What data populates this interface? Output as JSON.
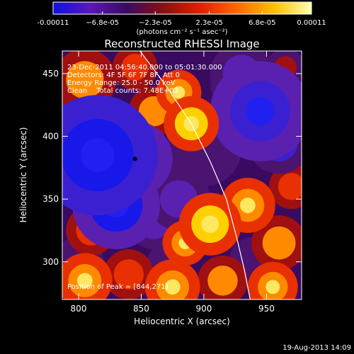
{
  "chart_data": {
    "type": "heatmap",
    "title": "Reconstructed RHESSI Image",
    "xlabel": "Heliocentric X (arcsec)",
    "ylabel": "Heliocentric Y (arcsec)",
    "xlim": [
      787,
      978
    ],
    "ylim": [
      270,
      468
    ],
    "x_ticks": [
      800,
      850,
      900,
      950
    ],
    "y_ticks": [
      300,
      350,
      400,
      450
    ],
    "colorbar": {
      "min": -0.00011,
      "max": 0.00011,
      "tick_values": [
        -0.00011,
        -6.8e-05,
        -2.3e-05,
        2.3e-05,
        6.8e-05,
        0.00011
      ],
      "tick_labels": [
        "-0.00011",
        "−6.8e-05",
        "−2.3e-05",
        "2.3e-05",
        "6.8e-05",
        "0.00011"
      ],
      "unit_label": "(photons cm⁻² s⁻¹ asec⁻²)",
      "colors": [
        "#1010e0",
        "#5a18b8",
        "#3a0a60",
        "#8a1010",
        "#e02000",
        "#ff6a00",
        "#ffc000",
        "#ffffb0"
      ]
    },
    "annotations": [
      "23-Dec-2011 04:56:40.000 to 05:01:30.000",
      "Detectors: 4F 5F 6F 7F 8F, Att 0",
      "Energy Range: 25.0 - 50.0 keV",
      "Clean    Total counts: 7.48E+03"
    ],
    "peak_label": "Position of Peak = [844,271]",
    "marker": {
      "x": 845,
      "y": 382
    },
    "limb_curve": [
      [
        849,
        468
      ],
      [
        870,
        440
      ],
      [
        890,
        410
      ],
      [
        905,
        380
      ],
      [
        918,
        350
      ],
      [
        926,
        320
      ],
      [
        932,
        295
      ],
      [
        937,
        270
      ]
    ],
    "blobs": [
      {
        "x": 815,
        "y": 385,
        "v": -1.0,
        "r": 48
      },
      {
        "x": 845,
        "y": 382,
        "v": -0.9,
        "r": 30
      },
      {
        "x": 830,
        "y": 345,
        "v": -0.8,
        "r": 35
      },
      {
        "x": 880,
        "y": 350,
        "v": -0.5,
        "r": 25
      },
      {
        "x": 945,
        "y": 420,
        "v": -0.7,
        "r": 40
      },
      {
        "x": 930,
        "y": 450,
        "v": -0.5,
        "r": 25
      },
      {
        "x": 960,
        "y": 395,
        "v": -0.6,
        "r": 25
      },
      {
        "x": 900,
        "y": 390,
        "v": -0.3,
        "r": 30
      },
      {
        "x": 860,
        "y": 330,
        "v": -0.4,
        "r": 20
      },
      {
        "x": 940,
        "y": 300,
        "v": -0.3,
        "r": 20
      },
      {
        "x": 800,
        "y": 300,
        "v": -0.3,
        "r": 20
      },
      {
        "x": 870,
        "y": 300,
        "v": -0.3,
        "r": 15
      },
      {
        "x": 890,
        "y": 410,
        "v": 0.9,
        "r": 22
      },
      {
        "x": 880,
        "y": 435,
        "v": 0.7,
        "r": 18
      },
      {
        "x": 905,
        "y": 330,
        "v": 0.9,
        "r": 25
      },
      {
        "x": 885,
        "y": 315,
        "v": 0.7,
        "r": 18
      },
      {
        "x": 935,
        "y": 345,
        "v": 0.7,
        "r": 22
      },
      {
        "x": 960,
        "y": 315,
        "v": 0.6,
        "r": 22
      },
      {
        "x": 860,
        "y": 420,
        "v": 0.6,
        "r": 20
      },
      {
        "x": 805,
        "y": 445,
        "v": 0.6,
        "r": 25
      },
      {
        "x": 800,
        "y": 415,
        "v": 0.5,
        "r": 18
      },
      {
        "x": 810,
        "y": 325,
        "v": 0.55,
        "r": 20
      },
      {
        "x": 805,
        "y": 285,
        "v": 0.7,
        "r": 22
      },
      {
        "x": 840,
        "y": 290,
        "v": 0.5,
        "r": 20
      },
      {
        "x": 875,
        "y": 280,
        "v": 0.7,
        "r": 22
      },
      {
        "x": 915,
        "y": 285,
        "v": 0.6,
        "r": 20
      },
      {
        "x": 955,
        "y": 280,
        "v": 0.7,
        "r": 20
      },
      {
        "x": 970,
        "y": 360,
        "v": 0.5,
        "r": 18
      },
      {
        "x": 845,
        "y": 455,
        "v": 0.45,
        "r": 18
      },
      {
        "x": 965,
        "y": 455,
        "v": 0.3,
        "r": 15
      },
      {
        "x": 920,
        "y": 440,
        "v": 0.3,
        "r": 15
      }
    ]
  },
  "footer": {
    "date": "19-Aug-2013 14:09"
  }
}
